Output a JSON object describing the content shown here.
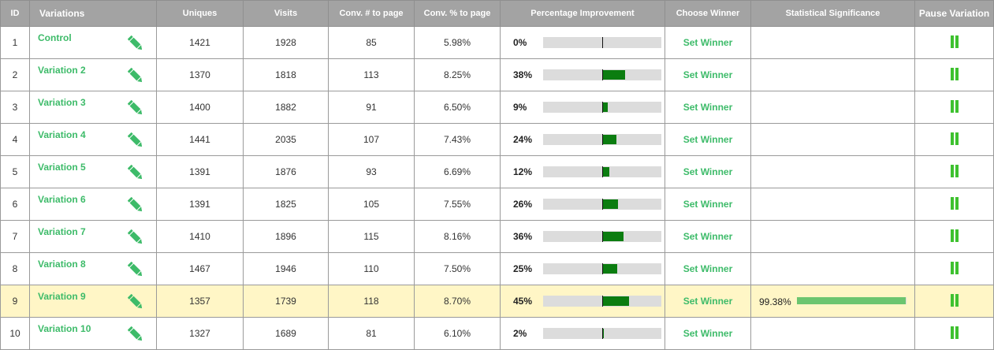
{
  "headers": {
    "id": "ID",
    "variations": "Variations",
    "uniques": "Uniques",
    "visits": "Visits",
    "conv_num": "Conv. # to page",
    "conv_pct": "Conv. % to page",
    "improvement": "Percentage Improvement",
    "winner": "Choose Winner",
    "significance": "Statistical Significance",
    "pause": "Pause Variation"
  },
  "icons": {
    "edit": "pencil-icon",
    "pause": "pause-icon"
  },
  "colors": {
    "header_bg": "#a3a3a3",
    "accent": "#3dbb69",
    "bar": "#0b7d10",
    "highlight": "#fff6c6",
    "significance_bar": "#6cc56f"
  },
  "rows": [
    {
      "id": "1",
      "name": "Control",
      "uniques": "1421",
      "visits": "1928",
      "conv_num": "85",
      "conv_pct": "5.98%",
      "improvement": "0%",
      "improvement_value": 0,
      "winner": "Set Winner",
      "significance": "",
      "significance_value": null,
      "highlighted": false
    },
    {
      "id": "2",
      "name": "Variation 2",
      "uniques": "1370",
      "visits": "1818",
      "conv_num": "113",
      "conv_pct": "8.25%",
      "improvement": "38%",
      "improvement_value": 38,
      "winner": "Set Winner",
      "significance": "",
      "significance_value": null,
      "highlighted": false
    },
    {
      "id": "3",
      "name": "Variation 3",
      "uniques": "1400",
      "visits": "1882",
      "conv_num": "91",
      "conv_pct": "6.50%",
      "improvement": "9%",
      "improvement_value": 9,
      "winner": "Set Winner",
      "significance": "",
      "significance_value": null,
      "highlighted": false
    },
    {
      "id": "4",
      "name": "Variation 4",
      "uniques": "1441",
      "visits": "2035",
      "conv_num": "107",
      "conv_pct": "7.43%",
      "improvement": "24%",
      "improvement_value": 24,
      "winner": "Set Winner",
      "significance": "",
      "significance_value": null,
      "highlighted": false
    },
    {
      "id": "5",
      "name": "Variation 5",
      "uniques": "1391",
      "visits": "1876",
      "conv_num": "93",
      "conv_pct": "6.69%",
      "improvement": "12%",
      "improvement_value": 12,
      "winner": "Set Winner",
      "significance": "",
      "significance_value": null,
      "highlighted": false
    },
    {
      "id": "6",
      "name": "Variation 6",
      "uniques": "1391",
      "visits": "1825",
      "conv_num": "105",
      "conv_pct": "7.55%",
      "improvement": "26%",
      "improvement_value": 26,
      "winner": "Set Winner",
      "significance": "",
      "significance_value": null,
      "highlighted": false
    },
    {
      "id": "7",
      "name": "Variation 7",
      "uniques": "1410",
      "visits": "1896",
      "conv_num": "115",
      "conv_pct": "8.16%",
      "improvement": "36%",
      "improvement_value": 36,
      "winner": "Set Winner",
      "significance": "",
      "significance_value": null,
      "highlighted": false
    },
    {
      "id": "8",
      "name": "Variation 8",
      "uniques": "1467",
      "visits": "1946",
      "conv_num": "110",
      "conv_pct": "7.50%",
      "improvement": "25%",
      "improvement_value": 25,
      "winner": "Set Winner",
      "significance": "",
      "significance_value": null,
      "highlighted": false
    },
    {
      "id": "9",
      "name": "Variation 9",
      "uniques": "1357",
      "visits": "1739",
      "conv_num": "118",
      "conv_pct": "8.70%",
      "improvement": "45%",
      "improvement_value": 45,
      "winner": "Set Winner",
      "significance": "99.38%",
      "significance_value": 99.38,
      "highlighted": true
    },
    {
      "id": "10",
      "name": "Variation 10",
      "uniques": "1327",
      "visits": "1689",
      "conv_num": "81",
      "conv_pct": "6.10%",
      "improvement": "2%",
      "improvement_value": 2,
      "winner": "Set Winner",
      "significance": "",
      "significance_value": null,
      "highlighted": false
    }
  ]
}
